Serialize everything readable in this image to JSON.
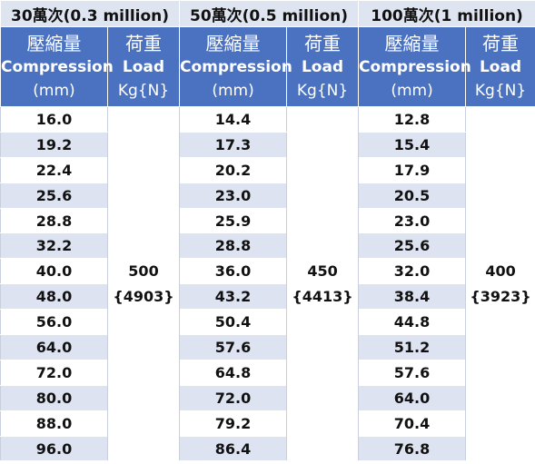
{
  "groups": [
    {
      "title": "30萬次(0.3 million)",
      "load_kg": "500",
      "load_n": "{4903}",
      "compression": [
        "16.0",
        "19.2",
        "22.4",
        "25.6",
        "28.8",
        "32.2",
        "40.0",
        "48.0",
        "56.0",
        "64.0",
        "72.0",
        "80.0",
        "88.0",
        "96.0"
      ]
    },
    {
      "title": "50萬次(0.5 million)",
      "load_kg": "450",
      "load_n": "{4413}",
      "compression": [
        "14.4",
        "17.3",
        "20.2",
        "23.0",
        "25.9",
        "28.8",
        "36.0",
        "43.2",
        "50.4",
        "57.6",
        "64.8",
        "72.0",
        "79.2",
        "86.4"
      ]
    },
    {
      "title": "100萬次(1 million)",
      "load_kg": "400",
      "load_n": "{3923}",
      "compression": [
        "12.8",
        "15.4",
        "17.9",
        "20.5",
        "23.0",
        "25.6",
        "32.0",
        "38.4",
        "44.8",
        "51.2",
        "57.6",
        "64.0",
        "70.4",
        "76.8"
      ]
    }
  ],
  "headers": {
    "compression": {
      "cjk": "壓縮量",
      "en": "Compression",
      "unit": "(mm)"
    },
    "load": {
      "cjk": "荷重",
      "en": "Load",
      "unit": "Kg{N}"
    }
  },
  "colors": {
    "header_bg": "#4a72c0",
    "group_bg": "#dfe4f1",
    "stripe": "#dde3f1"
  }
}
